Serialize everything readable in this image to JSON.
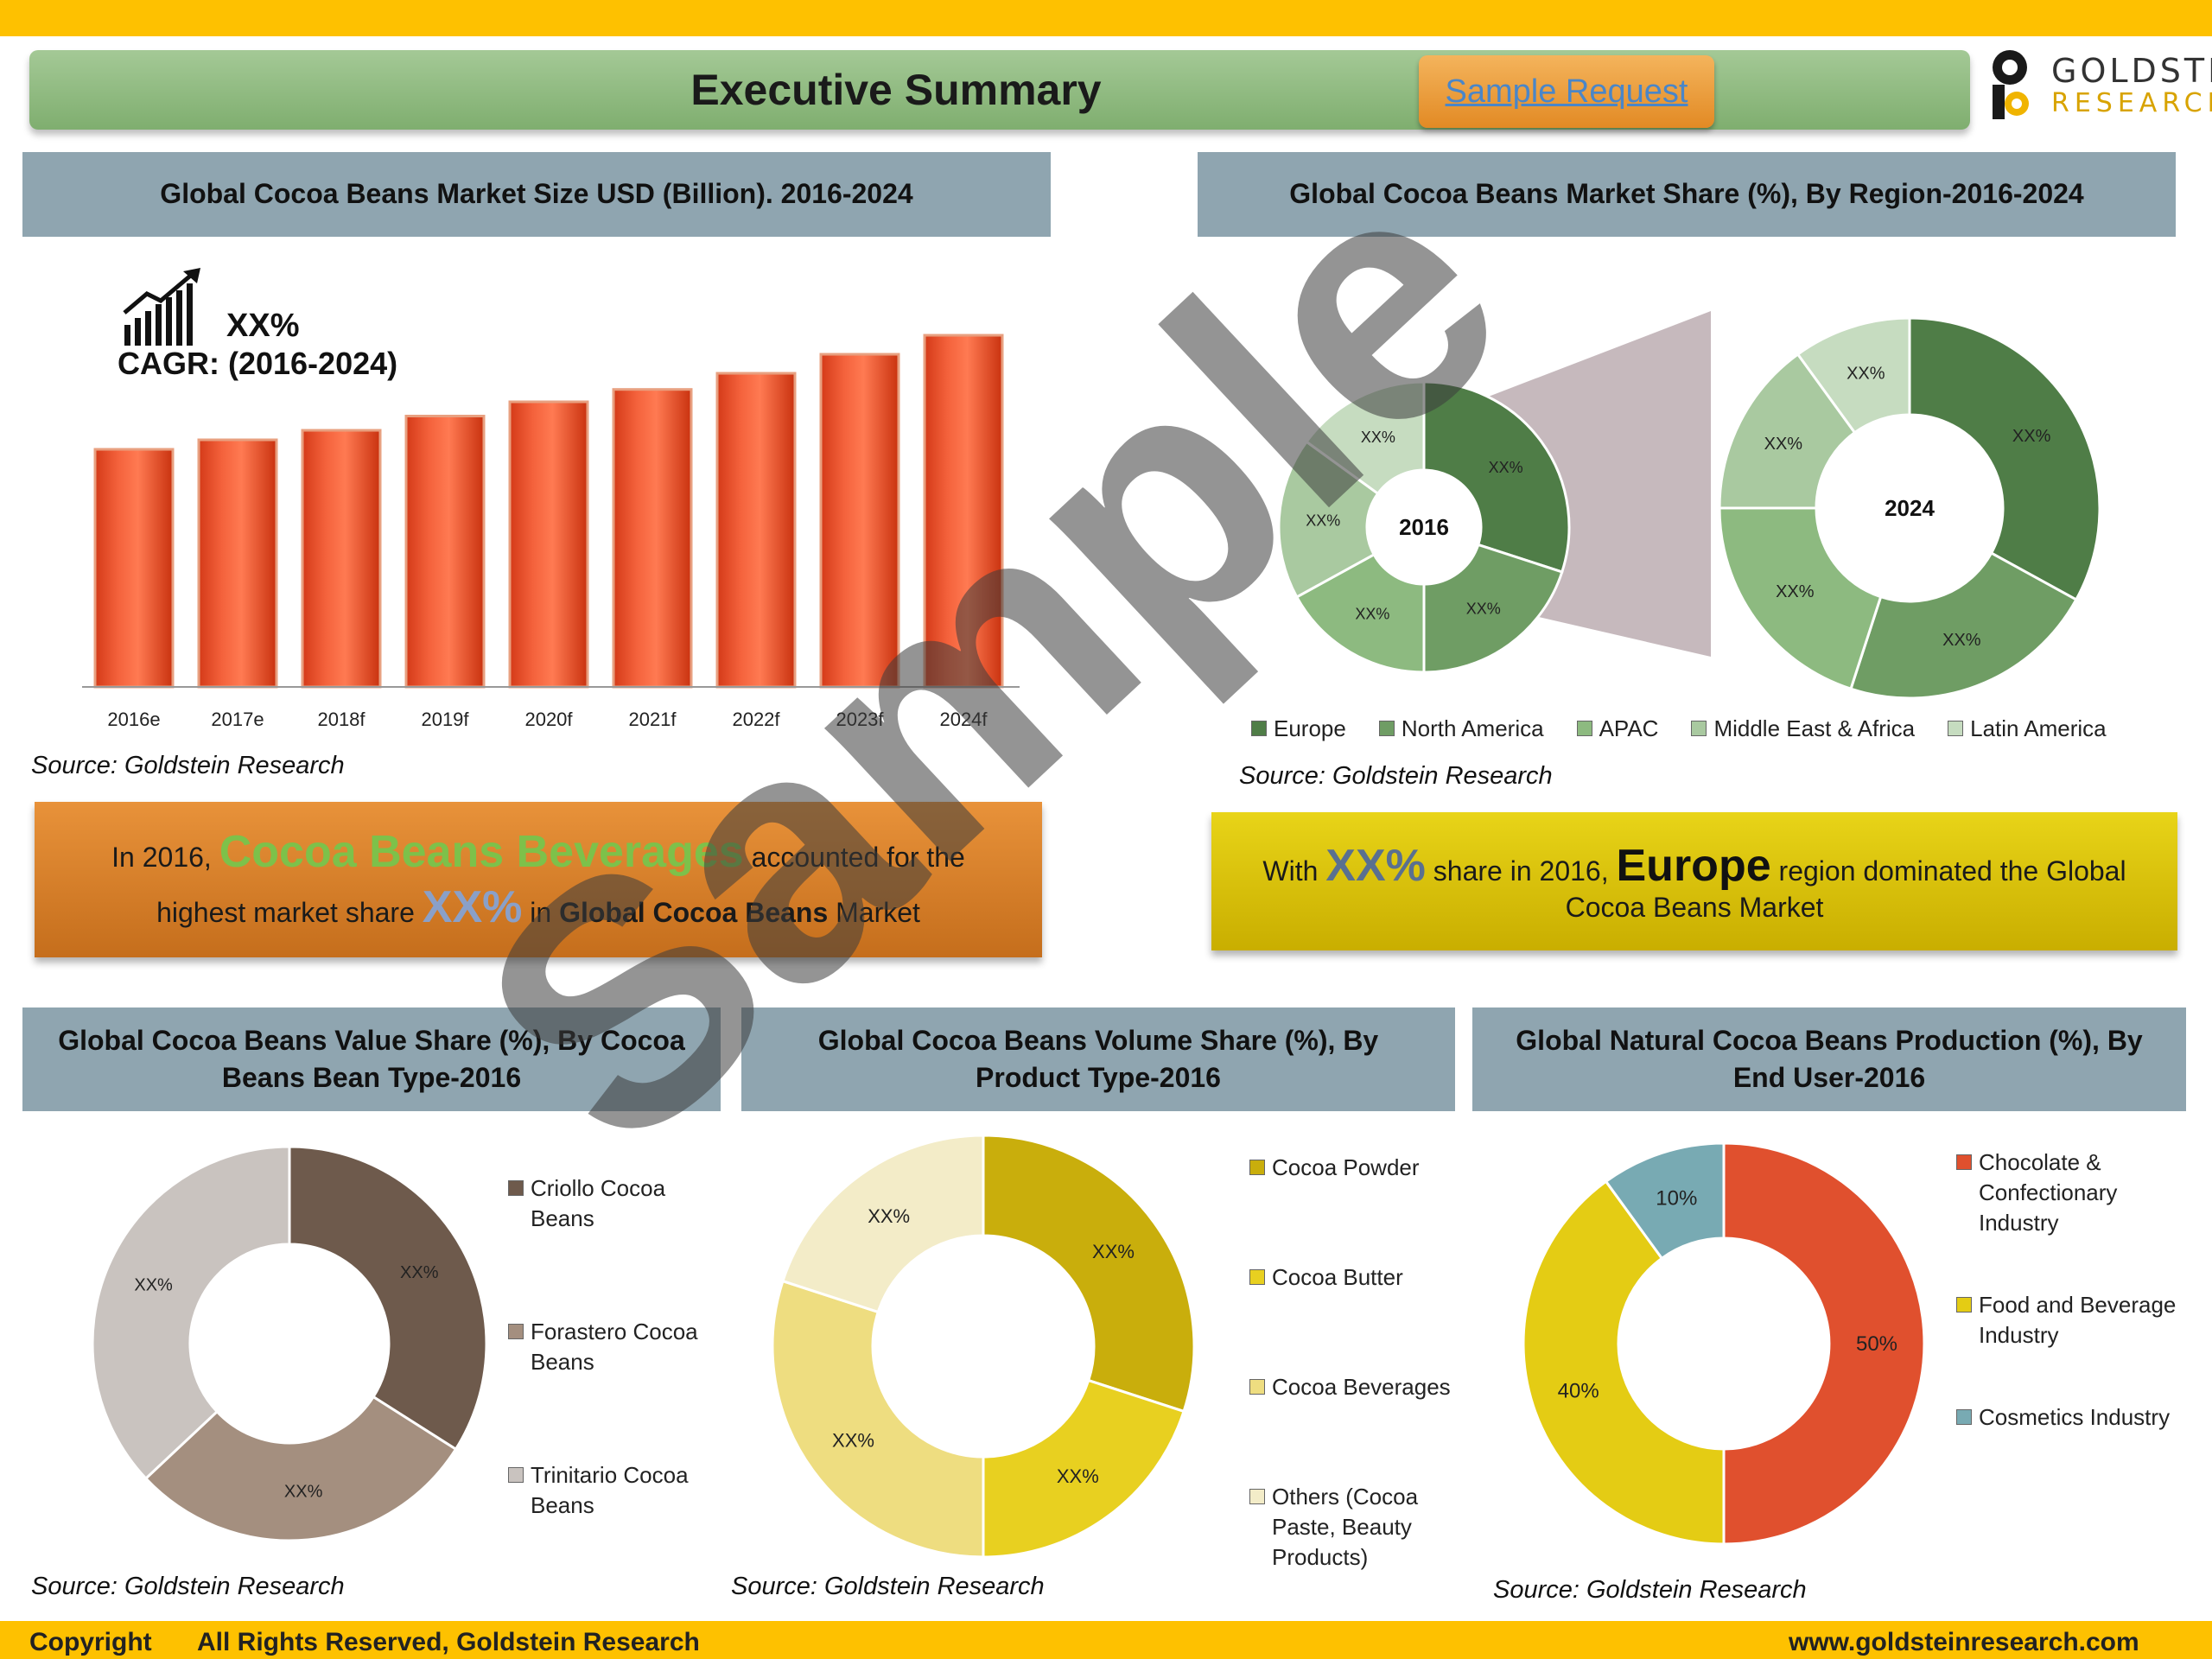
{
  "header": {
    "title": "Executive Summary",
    "sample_request": "Sample Request"
  },
  "logo": {
    "line1": "GOLDSTEIN",
    "line2": "RESEARCH"
  },
  "panels": {
    "p1": "Global Cocoa Beans Market Size USD (Billion). 2016-2024",
    "p2": "Global Cocoa Beans Market Share (%), By Region-2016-2024",
    "p3": "Global Cocoa Beans Value Share (%), By Cocoa Beans Bean Type-2016",
    "p4": "Global Cocoa Beans Volume Share (%), By  Product Type-2016",
    "p5": "Global Natural Cocoa Beans Production (%), By End User-2016"
  },
  "source": "Source: Goldstein Research",
  "cagr": {
    "value": "XX%",
    "label": "CAGR: (2016-2024)"
  },
  "callout1": {
    "t1": "In 2016,",
    "t2": "Cocoa Beans Beverages",
    "t3": "accounted for the",
    "t4": "highest market share",
    "t5": "XX%",
    "t6": "in",
    "t7": "Global Cocoa Beans",
    "t8": "Market"
  },
  "callout2": {
    "t1": "With",
    "t2": "XX%",
    "t3": "share in 2016,",
    "t4": "Europe",
    "t5": "region dominated the Global",
    "t6": "Cocoa Beans Market"
  },
  "footer": {
    "copyright": "Copyright",
    "rights": "All Rights Reserved, Goldstein Research",
    "url": "www.goldsteinresearch.com"
  },
  "watermark": "Sample",
  "chart_data": [
    {
      "type": "bar",
      "categories": [
        "2016e",
        "2017e",
        "2018f",
        "2019f",
        "2020f",
        "2021f",
        "2022f",
        "2023f",
        "2024f"
      ],
      "values": [
        25.0,
        26.0,
        27.0,
        28.5,
        30.0,
        31.3,
        33.0,
        35.0,
        37.0
      ],
      "ylim": [
        0,
        40
      ],
      "color": "#f0502a"
    },
    {
      "type": "pie",
      "subtype": "donut",
      "center_label": "2016",
      "categories": [
        "Europe",
        "North America",
        "APAC",
        "Middle East & Africa",
        "Latin America"
      ],
      "values": [
        30,
        20,
        17,
        18,
        15
      ],
      "labels": [
        "XX%",
        "XX%",
        "XX%",
        "XX%",
        "XX%"
      ],
      "colors": [
        "#4f7d47",
        "#6f9d64",
        "#8dba80",
        "#a9c9a0",
        "#c6dcc0"
      ],
      "legend": "bottom"
    },
    {
      "type": "pie",
      "subtype": "donut",
      "center_label": "2024",
      "categories": [
        "Europe",
        "North America",
        "APAC",
        "Middle East & Africa",
        "Latin America"
      ],
      "values": [
        33,
        22,
        20,
        15,
        10
      ],
      "labels": [
        "XX%",
        "XX%",
        "XX%",
        "XX%",
        "XX%"
      ],
      "colors": [
        "#4f7d47",
        "#6f9d64",
        "#8dba80",
        "#a9c9a0",
        "#c6dcc0"
      ],
      "legend": "bottom"
    },
    {
      "type": "pie",
      "subtype": "donut",
      "categories": [
        "Criollo Cocoa Beans",
        "Forastero Cocoa Beans",
        "Trinitario Cocoa Beans"
      ],
      "values": [
        34,
        29,
        37
      ],
      "labels": [
        "XX%",
        "XX%",
        "XX%"
      ],
      "colors": [
        "#6e5a4c",
        "#a48f7f",
        "#c9c3bf"
      ],
      "legend": "right"
    },
    {
      "type": "pie",
      "subtype": "donut",
      "categories": [
        "Cocoa Powder",
        "Cocoa Butter",
        "Cocoa Beverages",
        "Others (Cocoa Paste, Beauty Products)"
      ],
      "values": [
        30,
        20,
        30,
        20
      ],
      "labels": [
        "XX%",
        "XX%",
        "XX%",
        "XX%"
      ],
      "colors": [
        "#c9ae0c",
        "#e8d020",
        "#eedd80",
        "#f3ecc8"
      ],
      "legend": "right"
    },
    {
      "type": "pie",
      "subtype": "donut",
      "categories": [
        "Chocolate & Confectionary Industry",
        "Food and Beverage Industry",
        "Cosmetics Industry"
      ],
      "values": [
        50,
        40,
        10
      ],
      "labels": [
        "50%",
        "40%",
        "10%"
      ],
      "colors": [
        "#e0502e",
        "#e4cc14",
        "#78aab3"
      ],
      "legend": "right"
    }
  ]
}
